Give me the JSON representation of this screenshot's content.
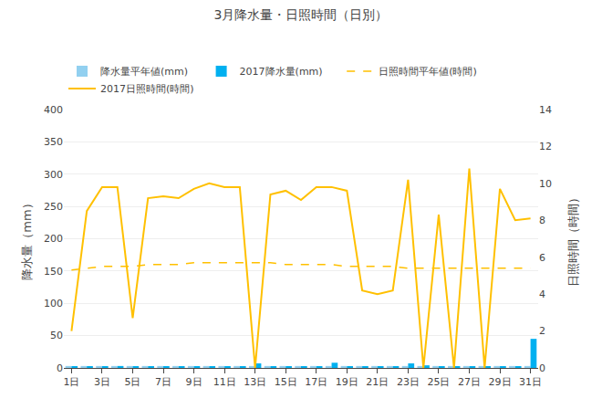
{
  "chart_data": {
    "type": "bar",
    "title": "3月降水量・日照時間（日別）",
    "x": [
      1,
      2,
      3,
      4,
      5,
      6,
      7,
      8,
      9,
      10,
      11,
      12,
      13,
      14,
      15,
      16,
      17,
      18,
      19,
      20,
      21,
      22,
      23,
      24,
      25,
      26,
      27,
      28,
      29,
      30,
      31
    ],
    "xlim": [
      0.5,
      31.5
    ],
    "xticks": [
      {
        "value": 1,
        "label": "1日"
      },
      {
        "value": 3,
        "label": "3日"
      },
      {
        "value": 5,
        "label": "5日"
      },
      {
        "value": 7,
        "label": "7日"
      },
      {
        "value": 9,
        "label": "9日"
      },
      {
        "value": 11,
        "label": "11日"
      },
      {
        "value": 13,
        "label": "13日"
      },
      {
        "value": 15,
        "label": "15日"
      },
      {
        "value": 17,
        "label": "17日"
      },
      {
        "value": 19,
        "label": "19日"
      },
      {
        "value": 21,
        "label": "21日"
      },
      {
        "value": 23,
        "label": "23日"
      },
      {
        "value": 25,
        "label": "25日"
      },
      {
        "value": 27,
        "label": "27日"
      },
      {
        "value": 29,
        "label": "29日"
      },
      {
        "value": 31,
        "label": "31日"
      }
    ],
    "ylabel": "降水量（mm）",
    "ylim": [
      0,
      400
    ],
    "yticks": [
      0,
      50,
      100,
      150,
      200,
      250,
      300,
      350,
      400
    ],
    "y2label": "日照時間（時間）",
    "y2lim": [
      0,
      14
    ],
    "y2ticks": [
      0,
      2,
      4,
      6,
      8,
      10,
      12,
      14
    ],
    "grid": "y",
    "legend": "upper left",
    "series": [
      {
        "name": "降水量平年値(mm)",
        "type": "bar",
        "color": "#92d0f0",
        "values": [
          3,
          3,
          3,
          3,
          3,
          3,
          3,
          3,
          3,
          3,
          3,
          3,
          3,
          3,
          3,
          3,
          3,
          3,
          3,
          3,
          3,
          3,
          3,
          3,
          3,
          3,
          3,
          3,
          3,
          3,
          3
        ]
      },
      {
        "name": "2017降水量(mm)",
        "type": "bar",
        "color": "#00b0f0",
        "values": [
          2,
          2,
          2,
          3,
          2,
          2,
          2,
          2,
          2,
          2,
          2,
          2,
          7,
          2,
          2,
          2,
          2,
          8,
          2,
          2,
          2,
          2,
          7,
          4,
          2,
          2,
          2,
          2,
          2,
          2,
          45
        ]
      },
      {
        "name": "日照時間平年値(時間)",
        "type": "line",
        "axis": "y2",
        "color": "#ffc000",
        "line_style": "dashed",
        "values": [
          5.3,
          5.4,
          5.5,
          5.5,
          5.5,
          5.6,
          5.6,
          5.6,
          5.7,
          5.7,
          5.7,
          5.7,
          5.7,
          5.7,
          5.6,
          5.6,
          5.6,
          5.6,
          5.5,
          5.5,
          5.5,
          5.5,
          5.4,
          5.4,
          5.4,
          5.4,
          5.4,
          5.4,
          5.4,
          5.4,
          5.4
        ]
      },
      {
        "name": "2017日照時間(時間)",
        "type": "line",
        "axis": "y2",
        "color": "#ffc000",
        "line_style": "solid",
        "values": [
          2.0,
          8.5,
          9.8,
          9.8,
          2.7,
          9.2,
          9.3,
          9.2,
          9.7,
          10.0,
          9.8,
          9.8,
          0.0,
          9.4,
          9.6,
          9.1,
          9.8,
          9.8,
          9.6,
          4.2,
          4.0,
          4.2,
          10.2,
          0.0,
          8.3,
          0.0,
          10.8,
          0.0,
          9.7,
          8.0,
          8.1
        ]
      }
    ]
  }
}
